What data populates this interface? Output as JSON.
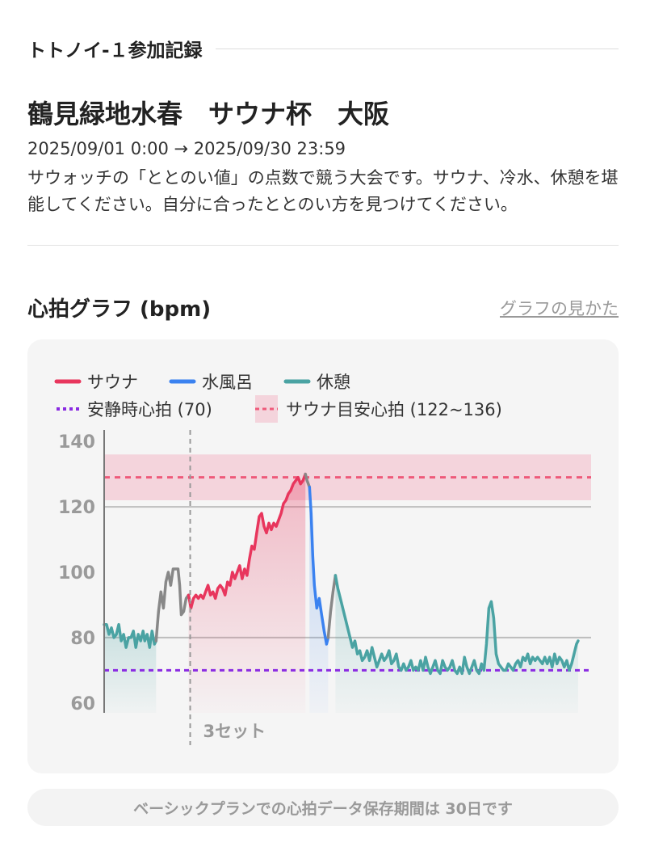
{
  "section": {
    "label": "トトノイ-１参加記録"
  },
  "event": {
    "title": "鶴見緑地水春　サウナ杯　大阪",
    "period": "2025/09/01 0:00 → 2025/09/30 23:59",
    "description": "サウォッチの「ととのい値」の点数で競う大会です。サウナ、冷水、休憩を堪能してください。自分に合ったととのい方を見つけてください。"
  },
  "graph": {
    "title": "心拍グラフ (bpm)",
    "help_link": "グラフの見かた"
  },
  "chart_data": {
    "type": "line",
    "title": "心拍グラフ (bpm)",
    "ylabel": "",
    "xlabel": "",
    "ylim": [
      57,
      143
    ],
    "yticks": [
      60,
      80,
      100,
      120,
      140
    ],
    "grid": "horizontal at 80 and 120",
    "legend": "top-left",
    "legend_entries": [
      {
        "name": "サウナ",
        "style": "line",
        "color": "#e8365d"
      },
      {
        "name": "水風呂",
        "style": "line",
        "color": "#3b82f0"
      },
      {
        "name": "休憩",
        "style": "line",
        "color": "#4aa3a3"
      },
      {
        "name": "安静時心拍 (70)",
        "style": "dotted",
        "color": "#8a2be2"
      },
      {
        "name": "サウナ目安心拍 (122~136)",
        "style": "band",
        "color": "#f2b8c6"
      }
    ],
    "resting_hr": 70,
    "sauna_band": [
      122,
      136
    ],
    "sauna_target_line": 129,
    "marker": {
      "x": 106,
      "label": "3セット"
    },
    "series": [
      {
        "name": "休憩",
        "color": "#4aa3a3",
        "points": [
          [
            0,
            84
          ],
          [
            3,
            84
          ],
          [
            6,
            81
          ],
          [
            9,
            83
          ],
          [
            12,
            80
          ],
          [
            15,
            81
          ],
          [
            18,
            84
          ],
          [
            21,
            79
          ],
          [
            24,
            81
          ],
          [
            27,
            77
          ],
          [
            30,
            80
          ],
          [
            33,
            80
          ],
          [
            36,
            82
          ],
          [
            39,
            77
          ],
          [
            42,
            81
          ],
          [
            45,
            79
          ],
          [
            48,
            82
          ],
          [
            50,
            79
          ],
          [
            53,
            81
          ],
          [
            56,
            77
          ],
          [
            59,
            82
          ],
          [
            62,
            78
          ],
          [
            64,
            79
          ]
        ]
      },
      {
        "name": "",
        "color": "#888888",
        "points": [
          [
            64,
            79
          ],
          [
            67,
            88
          ],
          [
            70,
            94
          ],
          [
            73,
            89
          ],
          [
            76,
            97
          ],
          [
            79,
            100
          ],
          [
            82,
            96
          ],
          [
            85,
            101
          ],
          [
            88,
            101
          ],
          [
            91,
            101
          ],
          [
            93,
            96
          ],
          [
            95,
            87
          ],
          [
            98,
            88
          ],
          [
            101,
            92
          ],
          [
            104,
            93
          ]
        ]
      },
      {
        "name": "サウナ",
        "color": "#e8365d",
        "points": [
          [
            104,
            93
          ],
          [
            107,
            89
          ],
          [
            110,
            92
          ],
          [
            113,
            93
          ],
          [
            116,
            92
          ],
          [
            119,
            93
          ],
          [
            122,
            92
          ],
          [
            125,
            94
          ],
          [
            128,
            96
          ],
          [
            131,
            93
          ],
          [
            134,
            94
          ],
          [
            137,
            92
          ],
          [
            140,
            95
          ],
          [
            143,
            96
          ],
          [
            146,
            95
          ],
          [
            149,
            93
          ],
          [
            152,
            97
          ],
          [
            155,
            96
          ],
          [
            158,
            100
          ],
          [
            161,
            98
          ],
          [
            164,
            100
          ],
          [
            167,
            102
          ],
          [
            170,
            98
          ],
          [
            173,
            101
          ],
          [
            176,
            99
          ],
          [
            179,
            104
          ],
          [
            182,
            108
          ],
          [
            185,
            107
          ],
          [
            188,
            112
          ],
          [
            191,
            117
          ],
          [
            194,
            118
          ],
          [
            197,
            114
          ],
          [
            200,
            112
          ],
          [
            203,
            115
          ],
          [
            206,
            113
          ],
          [
            209,
            115
          ],
          [
            212,
            114
          ],
          [
            215,
            116
          ],
          [
            218,
            118
          ],
          [
            221,
            121
          ],
          [
            224,
            122
          ],
          [
            227,
            124
          ],
          [
            230,
            125
          ],
          [
            233,
            127
          ],
          [
            236,
            128
          ],
          [
            239,
            129
          ],
          [
            242,
            127
          ],
          [
            245,
            128
          ],
          [
            248,
            130
          ]
        ]
      },
      {
        "name": "",
        "color": "#888888",
        "points": [
          [
            248,
            130
          ],
          [
            250,
            128
          ],
          [
            253,
            126
          ]
        ]
      },
      {
        "name": "水風呂",
        "color": "#3b82f0",
        "points": [
          [
            253,
            126
          ],
          [
            255,
            118
          ],
          [
            257,
            105
          ],
          [
            259,
            96
          ],
          [
            262,
            89
          ],
          [
            265,
            92
          ],
          [
            268,
            87
          ],
          [
            271,
            82
          ],
          [
            274,
            78
          ],
          [
            276,
            80
          ]
        ]
      },
      {
        "name": "",
        "color": "#888888",
        "points": [
          [
            276,
            80
          ],
          [
            279,
            88
          ],
          [
            282,
            94
          ],
          [
            285,
            99
          ]
        ]
      },
      {
        "name": "休憩",
        "color": "#4aa3a3",
        "points": [
          [
            285,
            99
          ],
          [
            288,
            95
          ],
          [
            291,
            92
          ],
          [
            294,
            89
          ],
          [
            297,
            86
          ],
          [
            300,
            83
          ],
          [
            303,
            80
          ],
          [
            306,
            77
          ],
          [
            309,
            79
          ],
          [
            312,
            75
          ],
          [
            315,
            76
          ],
          [
            318,
            73
          ],
          [
            321,
            74
          ],
          [
            324,
            76
          ],
          [
            327,
            73
          ],
          [
            330,
            77
          ],
          [
            333,
            74
          ],
          [
            336,
            71
          ],
          [
            339,
            73
          ],
          [
            342,
            75
          ],
          [
            345,
            73
          ],
          [
            348,
            74
          ],
          [
            351,
            76
          ],
          [
            354,
            72
          ],
          [
            357,
            73
          ],
          [
            360,
            75
          ],
          [
            363,
            71
          ],
          [
            366,
            70
          ],
          [
            369,
            72
          ],
          [
            372,
            70
          ],
          [
            375,
            71
          ],
          [
            378,
            73
          ],
          [
            381,
            70
          ],
          [
            384,
            71
          ],
          [
            387,
            70
          ],
          [
            390,
            73
          ],
          [
            393,
            70
          ],
          [
            396,
            74
          ],
          [
            399,
            71
          ],
          [
            402,
            69
          ],
          [
            405,
            71
          ],
          [
            408,
            73
          ],
          [
            411,
            70
          ],
          [
            414,
            69
          ],
          [
            417,
            73
          ],
          [
            420,
            71
          ],
          [
            423,
            70
          ],
          [
            426,
            71
          ],
          [
            429,
            73
          ],
          [
            432,
            70
          ],
          [
            435,
            69
          ],
          [
            438,
            71
          ],
          [
            441,
            69
          ],
          [
            444,
            74
          ],
          [
            447,
            71
          ],
          [
            450,
            69
          ],
          [
            453,
            71
          ],
          [
            456,
            73
          ],
          [
            459,
            70
          ],
          [
            462,
            69
          ],
          [
            465,
            72
          ],
          [
            468,
            70
          ],
          [
            471,
            78
          ],
          [
            474,
            89
          ],
          [
            477,
            91
          ],
          [
            480,
            86
          ],
          [
            483,
            75
          ],
          [
            486,
            72
          ],
          [
            489,
            71
          ],
          [
            492,
            70
          ],
          [
            495,
            70
          ],
          [
            498,
            72
          ],
          [
            501,
            71
          ],
          [
            504,
            70
          ],
          [
            507,
            72
          ],
          [
            510,
            73
          ],
          [
            513,
            71
          ],
          [
            516,
            74
          ],
          [
            519,
            73
          ],
          [
            522,
            75
          ],
          [
            525,
            72
          ],
          [
            528,
            74
          ],
          [
            531,
            73
          ],
          [
            534,
            74
          ],
          [
            537,
            73
          ],
          [
            540,
            72
          ],
          [
            543,
            74
          ],
          [
            546,
            72
          ],
          [
            549,
            74
          ],
          [
            552,
            71
          ],
          [
            555,
            75
          ],
          [
            558,
            72
          ],
          [
            561,
            74
          ],
          [
            564,
            73
          ],
          [
            567,
            71
          ],
          [
            570,
            73
          ],
          [
            573,
            70
          ],
          [
            576,
            72
          ],
          [
            579,
            75
          ],
          [
            582,
            78
          ],
          [
            584,
            79
          ]
        ]
      }
    ]
  },
  "footer": {
    "note": "ベーシックプランでの心拍データ保存期間は 30日です"
  }
}
